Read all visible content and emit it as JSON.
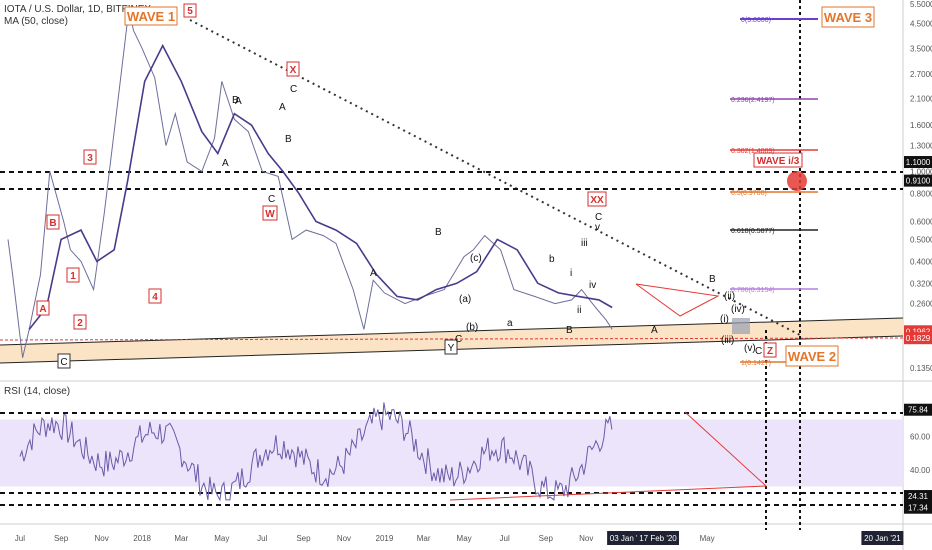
{
  "header": {
    "title": "IOTA / U.S. Dollar, 1D, BITFINEX",
    "ma_label": "MA (50, close)",
    "rsi_label": "RSI (14, close)"
  },
  "colors": {
    "price": "#6b6f9a",
    "ma": "#4a3a8c",
    "rsi": "#6a5aa8",
    "rsi_band": "#ece4fa",
    "channel": "#fbe3c5",
    "red": "#e53935",
    "fib_purple": "#8e44ad",
    "wave_orange": "#e3762b"
  },
  "chart_data": [
    {
      "type": "line",
      "title": "IOTA / U.S. Dollar, 1D, BITFINEX",
      "y_scale": "log",
      "y_ticks": [
        "5.5000",
        "4.5000",
        "3.5000",
        "2.7000",
        "2.1000",
        "1.6000",
        "1.3000",
        "1.0000",
        "0.8000",
        "0.6000",
        "0.5000",
        "0.4000",
        "0.3200",
        "0.2600",
        "0.1350"
      ],
      "x_ticks": [
        "Jul",
        "Sep",
        "Nov",
        "2018",
        "Mar",
        "May",
        "Jul",
        "Sep",
        "Nov",
        "2019",
        "Mar",
        "May",
        "Jul",
        "Sep",
        "Nov",
        "03 Jan '20",
        "17 Feb '20",
        "May",
        "20 Jan '21"
      ],
      "price_badges": [
        "1.1000",
        "0.9100",
        "0.1962",
        "0.1829"
      ],
      "series": [
        {
          "name": "",
          "x": [
            "2017-06-13",
            "2017-06-20",
            "2017-07-05",
            "2017-07-15",
            "2017-08-01",
            "2017-08-15",
            "2017-09-05",
            "2017-09-15",
            "2017-10-01",
            "2017-10-20",
            "2017-11-05",
            "2017-11-20",
            "2017-12-05",
            "2017-12-12",
            "2017-12-19",
            "2018-01-01",
            "2018-01-20",
            "2018-02-06",
            "2018-02-20",
            "2018-03-10",
            "2018-04-01",
            "2018-04-20",
            "2018-05-01",
            "2018-05-20",
            "2018-06-10",
            "2018-07-01",
            "2018-07-25",
            "2018-08-15",
            "2018-09-05",
            "2018-10-01",
            "2018-10-20",
            "2018-11-15",
            "2018-12-01",
            "2018-12-15",
            "2019-01-01",
            "2019-02-01",
            "2019-03-01",
            "2019-04-01",
            "2019-05-01",
            "2019-05-15",
            "2019-06-01",
            "2019-06-25",
            "2019-07-15",
            "2019-08-15",
            "2019-09-15",
            "2019-10-10",
            "2019-10-25",
            "2019-11-15",
            "2019-12-01",
            "2019-12-10"
          ],
          "y": [
            0.5,
            0.35,
            0.15,
            0.2,
            0.35,
            1.0,
            0.6,
            0.45,
            0.4,
            0.3,
            0.65,
            1.5,
            3.5,
            5.2,
            4.2,
            3.5,
            2.6,
            1.3,
            1.8,
            1.1,
            1.0,
            1.4,
            2.5,
            1.7,
            1.5,
            1.0,
            0.95,
            0.5,
            0.55,
            0.52,
            0.48,
            0.3,
            0.2,
            0.33,
            0.29,
            0.26,
            0.28,
            0.3,
            0.42,
            0.45,
            0.52,
            0.45,
            0.3,
            0.28,
            0.26,
            0.27,
            0.3,
            0.25,
            0.22,
            0.2
          ]
        },
        {
          "name": "MA (50, close)",
          "x": [
            "2017-07-15",
            "2017-08-10",
            "2017-09-01",
            "2017-10-01",
            "2017-10-25",
            "2017-11-20",
            "2017-12-10",
            "2018-01-05",
            "2018-02-01",
            "2018-03-01",
            "2018-04-01",
            "2018-04-25",
            "2018-05-20",
            "2018-06-15",
            "2018-07-10",
            "2018-08-01",
            "2018-08-25",
            "2018-09-20",
            "2018-10-20",
            "2018-11-20",
            "2018-12-20",
            "2019-01-20",
            "2019-02-20",
            "2019-03-20",
            "2019-04-20",
            "2019-05-20",
            "2019-06-20",
            "2019-07-20",
            "2019-08-20",
            "2019-09-20",
            "2019-10-20",
            "2019-11-20",
            "2019-12-10"
          ],
          "y": [
            0.2,
            0.25,
            0.5,
            0.55,
            0.4,
            0.45,
            0.9,
            2.5,
            3.6,
            2.5,
            1.5,
            1.2,
            1.8,
            1.6,
            1.2,
            1.0,
            0.8,
            0.6,
            0.55,
            0.48,
            0.35,
            0.28,
            0.27,
            0.3,
            0.32,
            0.36,
            0.5,
            0.45,
            0.32,
            0.29,
            0.28,
            0.27,
            0.25
          ]
        }
      ],
      "fib_levels": [
        {
          "label": "0(5.8000)",
          "color": "#6a3fd0"
        },
        {
          "label": "0.236(2.4197)",
          "color": "#8e44ad"
        },
        {
          "label": "0.382(1.4089)",
          "color": "#e53935"
        },
        {
          "label": "0.5(0.9760)",
          "color": "#e3762b"
        },
        {
          "label": "0.618(0.5877)",
          "color": "#222"
        },
        {
          "label": "0.786(0.3154)",
          "color": "#b57edc"
        },
        {
          "label": "1(0.1427)",
          "color": "#e3762b"
        }
      ],
      "wave_boxes": [
        "WAVE 1",
        "WAVE 3",
        "WAVE i/3",
        "WAVE 2"
      ],
      "wave_labels_boxed": [
        "5",
        "X",
        "W",
        "XX",
        "3",
        "B",
        "1",
        "2",
        "4",
        "A",
        "C",
        "Y",
        "Z"
      ],
      "wave_labels": [
        "A",
        "B",
        "C",
        "B",
        "A",
        "C",
        "B",
        "A",
        "B",
        "A",
        "(c)",
        "(a)",
        "(b)",
        "C",
        "b",
        "a",
        "i",
        "ii",
        "iii",
        "iv",
        "B",
        "C",
        "A",
        "B",
        "(ii)",
        "(iv)",
        "(i)",
        "(iii)",
        "(v)",
        "C",
        "a",
        "v"
      ]
    },
    {
      "type": "line",
      "title": "RSI (14, close)",
      "y_ticks": [
        "75.84",
        "60.00",
        "40.00",
        "24.31",
        "17.34"
      ],
      "ylim": [
        10,
        90
      ],
      "band": [
        30,
        70
      ],
      "series": [
        {
          "name": "RSI (14, close)"
        }
      ]
    }
  ]
}
